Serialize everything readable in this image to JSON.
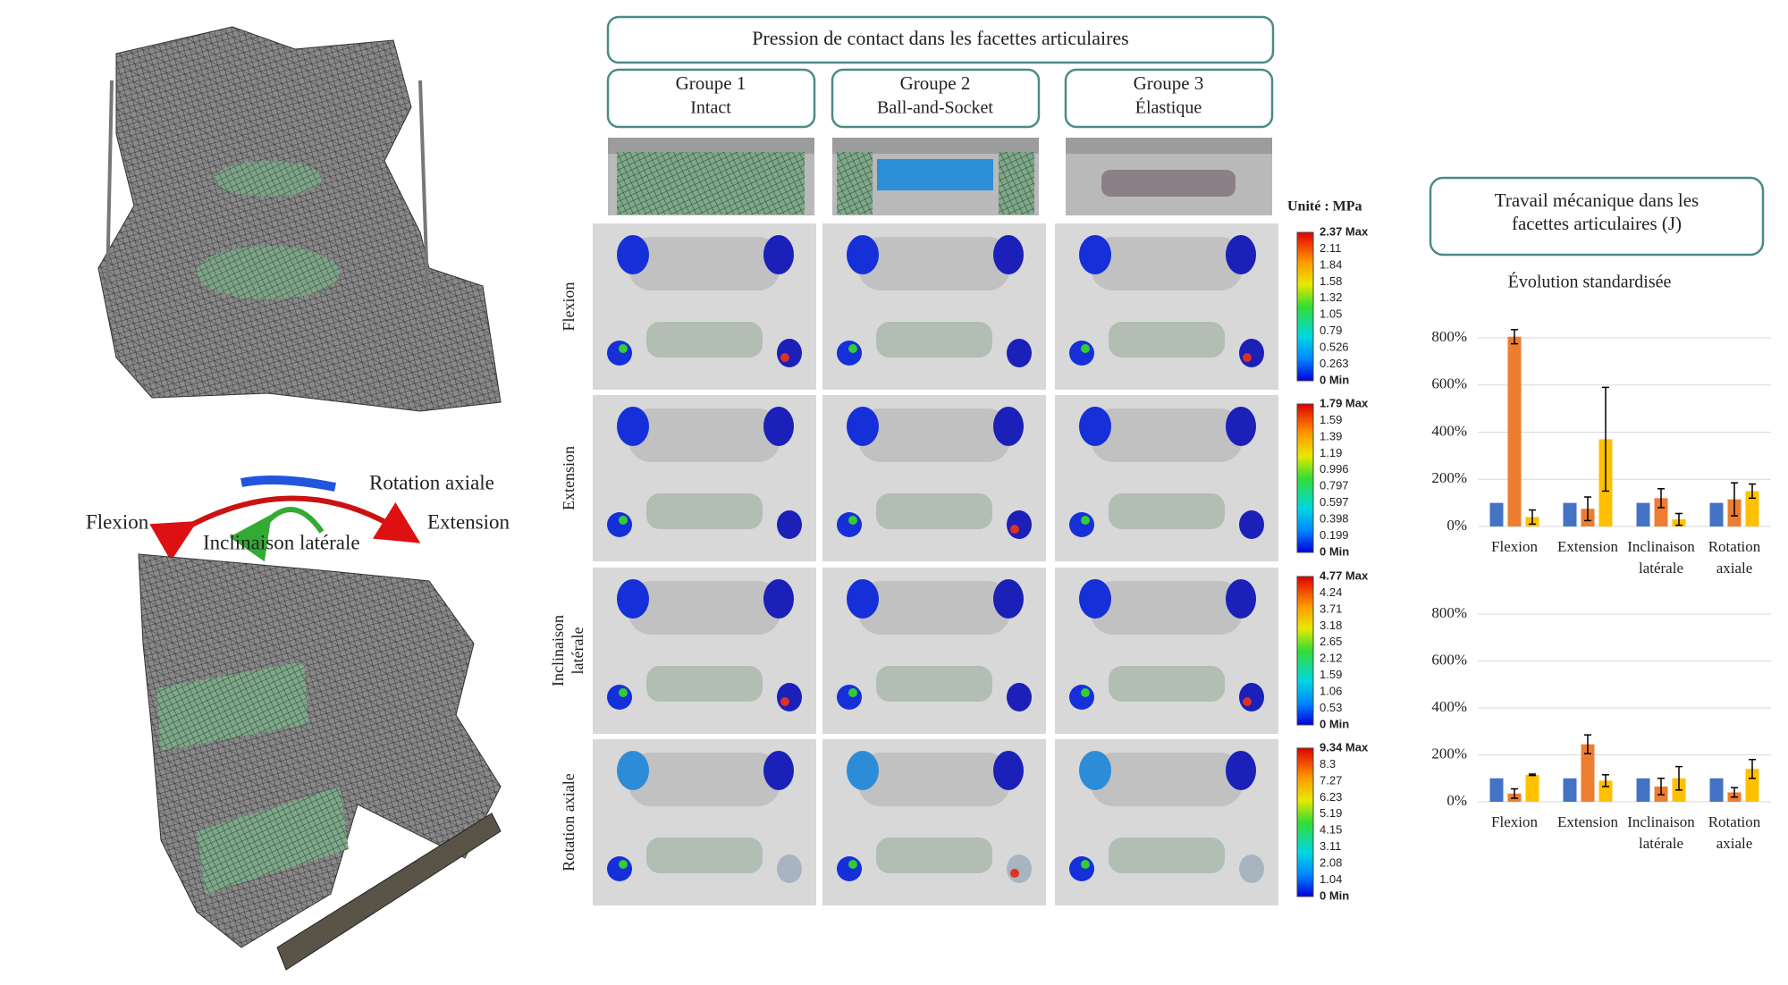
{
  "motion_labels": {
    "rotation": "Rotation axiale",
    "flexion": "Flexion",
    "extension": "Extension",
    "lateral": "Inclinaison latérale"
  },
  "contact_pressure": {
    "title": "Pression de contact dans les facettes articulaires",
    "groups": [
      {
        "name": "Groupe 1",
        "label": "Intact"
      },
      {
        "name": "Groupe 2",
        "label": "Ball-and-Socket"
      },
      {
        "name": "Groupe 3",
        "label": "Élastique"
      }
    ],
    "rows": [
      "Flexion",
      "Extension",
      "Inclinaison latérale",
      "Rotation axiale"
    ],
    "unit": "Unité : MPa",
    "scales": [
      [
        "2.37 Max",
        "2.11",
        "1.84",
        "1.58",
        "1.32",
        "1.05",
        "0.79",
        "0.526",
        "0.263",
        "0 Min"
      ],
      [
        "1.79 Max",
        "1.59",
        "1.39",
        "1.19",
        "0.996",
        "0.797",
        "0.597",
        "0.398",
        "0.199",
        "0 Min"
      ],
      [
        "4.77 Max",
        "4.24",
        "3.71",
        "3.18",
        "2.65",
        "2.12",
        "1.59",
        "1.06",
        "0.53",
        "0 Min"
      ],
      [
        "9.34 Max",
        "8.3",
        "7.27",
        "6.23",
        "5.19",
        "4.15",
        "3.11",
        "2.08",
        "1.04",
        "0 Min"
      ]
    ]
  },
  "mechanical_work": {
    "title": "Travail mécanique dans les facettes articulaires (J)",
    "subtitle": "Évolution standardisée"
  },
  "chart_data": [
    {
      "type": "bar",
      "categories": [
        "Flexion",
        "Extension",
        "Inclinaison latérale",
        "Rotation axiale"
      ],
      "series": [
        {
          "color": "#4472c4",
          "values": [
            100,
            100,
            100,
            100
          ]
        },
        {
          "color": "#ed7d31",
          "values": [
            805,
            75,
            120,
            115
          ],
          "errors": [
            30,
            50,
            40,
            70
          ]
        },
        {
          "color": "#ffc000",
          "values": [
            40,
            370,
            30,
            150
          ],
          "errors": [
            30,
            220,
            25,
            30
          ]
        }
      ],
      "ylim": [
        0,
        850
      ],
      "yticks": [
        {
          "value": 0,
          "label": "0%"
        },
        {
          "value": 200,
          "label": "200%"
        },
        {
          "value": 400,
          "label": "400%"
        },
        {
          "value": 600,
          "label": "600%"
        },
        {
          "value": 800,
          "label": "800%"
        }
      ],
      "grid": true
    },
    {
      "type": "bar",
      "categories": [
        "Flexion",
        "Extension",
        "Inclinaison latérale",
        "Rotation axiale"
      ],
      "series": [
        {
          "color": "#4472c4",
          "values": [
            100,
            100,
            100,
            100
          ]
        },
        {
          "color": "#ed7d31",
          "values": [
            35,
            245,
            65,
            40
          ],
          "errors": [
            20,
            40,
            35,
            20
          ]
        },
        {
          "color": "#ffc000",
          "values": [
            115,
            90,
            100,
            140
          ],
          "errors": [
            3,
            25,
            50,
            40
          ]
        }
      ],
      "ylim": [
        0,
        850
      ],
      "yticks": [
        {
          "value": 0,
          "label": "0%"
        },
        {
          "value": 200,
          "label": "200%"
        },
        {
          "value": 400,
          "label": "400%"
        },
        {
          "value": 600,
          "label": "600%"
        },
        {
          "value": 800,
          "label": "800%"
        }
      ],
      "grid": true
    }
  ]
}
